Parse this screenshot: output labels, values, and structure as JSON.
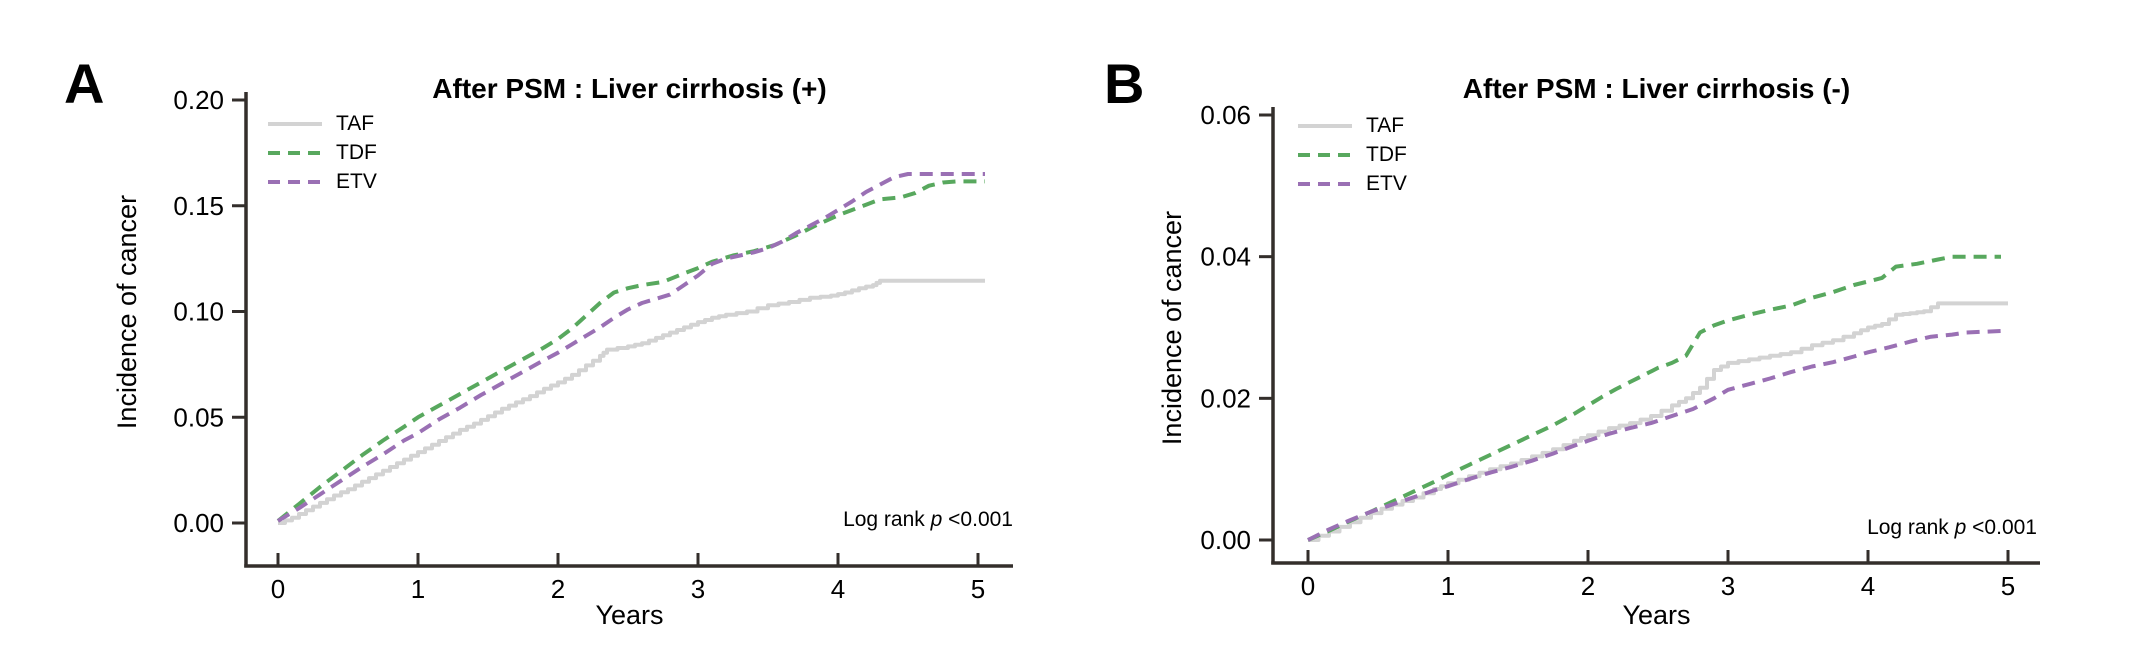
{
  "panels": [
    {
      "letter": "A",
      "title": "After PSM : Liver cirrhosis (+)",
      "y_axis_label": "Incidence of cancer",
      "x_axis_label": "Years",
      "legend": [
        {
          "label": "TAF"
        },
        {
          "label": "TDF"
        },
        {
          "label": "ETV"
        }
      ],
      "log_rank": {
        "prefix": "Log rank",
        "p": "p",
        "value": "<0.001"
      }
    },
    {
      "letter": "B",
      "title": "After PSM : Liver cirrhosis (-)",
      "y_axis_label": "Incidence of cancer",
      "x_axis_label": "Years",
      "legend": [
        {
          "label": "TAF"
        },
        {
          "label": "TDF"
        },
        {
          "label": "ETV"
        }
      ],
      "log_rank": {
        "prefix": "Log rank",
        "p": "p",
        "value": "<0.001"
      }
    }
  ],
  "colors": {
    "taf": "#d3d3d3",
    "tdf": "#58a85e",
    "etv": "#9a70b4",
    "axis": "#332e2b",
    "text": "#000000"
  },
  "chart_data": [
    {
      "type": "line",
      "panel": "A",
      "title": "After PSM : Liver cirrhosis (+)",
      "xlabel": "Years",
      "ylabel": "Incidence of cancer",
      "xlim": [
        0,
        5
      ],
      "ylim": [
        0,
        0.2
      ],
      "x_ticks": [
        0,
        1,
        2,
        3,
        4,
        5
      ],
      "y_tick_labels": [
        "0.00",
        "0.05",
        "0.10",
        "0.15",
        "0.20"
      ],
      "grid": false,
      "legend_position": "top-left",
      "annotation": "Log rank p <0.001",
      "series": [
        {
          "name": "TAF",
          "color": "#d3d3d3",
          "line_style": "solid",
          "step": true,
          "points": [
            [
              0,
              0
            ],
            [
              0.1,
              0.0025
            ],
            [
              0.2,
              0.006
            ],
            [
              0.3,
              0.0095
            ],
            [
              0.4,
              0.013
            ],
            [
              0.5,
              0.016
            ],
            [
              0.6,
              0.0195
            ],
            [
              0.7,
              0.023
            ],
            [
              0.8,
              0.0265
            ],
            [
              0.9,
              0.03
            ],
            [
              1,
              0.0335
            ],
            [
              1.1,
              0.037
            ],
            [
              1.2,
              0.0405
            ],
            [
              1.3,
              0.044
            ],
            [
              1.4,
              0.047
            ],
            [
              1.5,
              0.0505
            ],
            [
              1.6,
              0.054
            ],
            [
              1.7,
              0.057
            ],
            [
              1.8,
              0.06
            ],
            [
              1.9,
              0.0635
            ],
            [
              2,
              0.0665
            ],
            [
              2.1,
              0.07
            ],
            [
              2.2,
              0.0745
            ],
            [
              2.3,
              0.079
            ],
            [
              2.35,
              0.082
            ],
            [
              2.5,
              0.0835
            ],
            [
              2.6,
              0.085
            ],
            [
              2.7,
              0.0875
            ],
            [
              2.8,
              0.09
            ],
            [
              2.9,
              0.0925
            ],
            [
              3,
              0.095
            ],
            [
              3.1,
              0.097
            ],
            [
              3.2,
              0.0985
            ],
            [
              3.35,
              0.1
            ],
            [
              3.5,
              0.103
            ],
            [
              3.65,
              0.1045
            ],
            [
              3.8,
              0.1065
            ],
            [
              3.95,
              0.1075
            ],
            [
              4.05,
              0.109
            ],
            [
              4.15,
              0.111
            ],
            [
              4.25,
              0.1125
            ],
            [
              4.3,
              0.1145
            ],
            [
              5.05,
              0.1145
            ]
          ]
        },
        {
          "name": "TDF",
          "color": "#58a85e",
          "line_style": "dashed",
          "step": false,
          "points": [
            [
              0,
              0.001
            ],
            [
              0.15,
              0.009
            ],
            [
              0.3,
              0.017
            ],
            [
              0.45,
              0.0245
            ],
            [
              0.6,
              0.032
            ],
            [
              0.75,
              0.039
            ],
            [
              0.9,
              0.0455
            ],
            [
              1,
              0.05
            ],
            [
              1.15,
              0.0555
            ],
            [
              1.3,
              0.061
            ],
            [
              1.45,
              0.0665
            ],
            [
              1.6,
              0.072
            ],
            [
              1.75,
              0.0775
            ],
            [
              1.9,
              0.083
            ],
            [
              2,
              0.087
            ],
            [
              2.1,
              0.092
            ],
            [
              2.2,
              0.098
            ],
            [
              2.3,
              0.104
            ],
            [
              2.4,
              0.109
            ],
            [
              2.5,
              0.111
            ],
            [
              2.6,
              0.1125
            ],
            [
              2.75,
              0.114
            ],
            [
              2.9,
              0.118
            ],
            [
              3,
              0.1205
            ],
            [
              3.1,
              0.1235
            ],
            [
              3.25,
              0.1265
            ],
            [
              3.4,
              0.1285
            ],
            [
              3.55,
              0.1315
            ],
            [
              3.7,
              0.136
            ],
            [
              3.85,
              0.141
            ],
            [
              4,
              0.1455
            ],
            [
              4.1,
              0.148
            ],
            [
              4.2,
              0.1505
            ],
            [
              4.3,
              0.153
            ],
            [
              4.45,
              0.154
            ],
            [
              4.55,
              0.156
            ],
            [
              4.65,
              0.1595
            ],
            [
              4.75,
              0.161
            ],
            [
              4.85,
              0.1615
            ],
            [
              5.05,
              0.1615
            ]
          ]
        },
        {
          "name": "ETV",
          "color": "#9a70b4",
          "line_style": "dashed",
          "step": false,
          "points": [
            [
              0,
              0.001
            ],
            [
              0.15,
              0.007
            ],
            [
              0.3,
              0.0135
            ],
            [
              0.45,
              0.02
            ],
            [
              0.6,
              0.0265
            ],
            [
              0.75,
              0.0325
            ],
            [
              0.9,
              0.039
            ],
            [
              1,
              0.0425
            ],
            [
              1.15,
              0.049
            ],
            [
              1.3,
              0.0545
            ],
            [
              1.45,
              0.0605
            ],
            [
              1.6,
              0.066
            ],
            [
              1.75,
              0.0715
            ],
            [
              1.9,
              0.077
            ],
            [
              2,
              0.0805
            ],
            [
              2.1,
              0.0845
            ],
            [
              2.2,
              0.0885
            ],
            [
              2.3,
              0.0925
            ],
            [
              2.4,
              0.097
            ],
            [
              2.5,
              0.101
            ],
            [
              2.6,
              0.104
            ],
            [
              2.7,
              0.106
            ],
            [
              2.8,
              0.108
            ],
            [
              2.9,
              0.1125
            ],
            [
              3,
              0.117
            ],
            [
              3.1,
              0.1225
            ],
            [
              3.2,
              0.125
            ],
            [
              3.3,
              0.1265
            ],
            [
              3.4,
              0.128
            ],
            [
              3.5,
              0.13
            ],
            [
              3.6,
              0.133
            ],
            [
              3.7,
              0.137
            ],
            [
              3.8,
              0.1405
            ],
            [
              3.9,
              0.144
            ],
            [
              4,
              0.148
            ],
            [
              4.1,
              0.152
            ],
            [
              4.2,
              0.1565
            ],
            [
              4.3,
              0.16
            ],
            [
              4.4,
              0.1635
            ],
            [
              4.5,
              0.165
            ],
            [
              5.05,
              0.165
            ]
          ]
        }
      ]
    },
    {
      "type": "line",
      "panel": "B",
      "title": "After PSM : Liver cirrhosis (-)",
      "xlabel": "Years",
      "ylabel": "Incidence of cancer",
      "xlim": [
        0,
        5
      ],
      "ylim": [
        0,
        0.06
      ],
      "x_ticks": [
        0,
        1,
        2,
        3,
        4,
        5
      ],
      "y_tick_labels": [
        "0.00",
        "0.02",
        "0.04",
        "0.06"
      ],
      "grid": false,
      "legend_position": "top-left",
      "annotation": "Log rank p <0.001",
      "series": [
        {
          "name": "TAF",
          "color": "#d3d3d3",
          "line_style": "solid",
          "step": true,
          "points": [
            [
              0,
              0
            ],
            [
              0.15,
              0.0012
            ],
            [
              0.3,
              0.0025
            ],
            [
              0.45,
              0.0038
            ],
            [
              0.6,
              0.005
            ],
            [
              0.75,
              0.006
            ],
            [
              0.9,
              0.0072
            ],
            [
              1,
              0.008
            ],
            [
              1.15,
              0.009
            ],
            [
              1.3,
              0.01
            ],
            [
              1.45,
              0.0108
            ],
            [
              1.6,
              0.0118
            ],
            [
              1.75,
              0.0128
            ],
            [
              1.9,
              0.014
            ],
            [
              2,
              0.0148
            ],
            [
              2.15,
              0.0158
            ],
            [
              2.3,
              0.0165
            ],
            [
              2.45,
              0.0175
            ],
            [
              2.6,
              0.019
            ],
            [
              2.7,
              0.02
            ],
            [
              2.8,
              0.0215
            ],
            [
              2.9,
              0.024
            ],
            [
              3,
              0.025
            ],
            [
              3.15,
              0.0255
            ],
            [
              3.3,
              0.026
            ],
            [
              3.45,
              0.0265
            ],
            [
              3.6,
              0.0275
            ],
            [
              3.75,
              0.0282
            ],
            [
              3.9,
              0.0292
            ],
            [
              4,
              0.03
            ],
            [
              4.1,
              0.0305
            ],
            [
              4.2,
              0.0318
            ],
            [
              4.3,
              0.032
            ],
            [
              4.4,
              0.0323
            ],
            [
              4.5,
              0.0334
            ],
            [
              5,
              0.0334
            ]
          ]
        },
        {
          "name": "TDF",
          "color": "#58a85e",
          "line_style": "dashed",
          "step": false,
          "points": [
            [
              0,
              0
            ],
            [
              0.15,
              0.0013
            ],
            [
              0.3,
              0.0027
            ],
            [
              0.45,
              0.004
            ],
            [
              0.6,
              0.0054
            ],
            [
              0.75,
              0.0068
            ],
            [
              0.9,
              0.0082
            ],
            [
              1,
              0.0092
            ],
            [
              1.15,
              0.0106
            ],
            [
              1.3,
              0.012
            ],
            [
              1.45,
              0.0134
            ],
            [
              1.6,
              0.0148
            ],
            [
              1.75,
              0.0162
            ],
            [
              1.9,
              0.0178
            ],
            [
              2,
              0.019
            ],
            [
              2.1,
              0.0202
            ],
            [
              2.2,
              0.0213
            ],
            [
              2.3,
              0.0223
            ],
            [
              2.4,
              0.0233
            ],
            [
              2.5,
              0.0243
            ],
            [
              2.6,
              0.025
            ],
            [
              2.7,
              0.026
            ],
            [
              2.8,
              0.0293
            ],
            [
              2.9,
              0.0303
            ],
            [
              3,
              0.031
            ],
            [
              3.15,
              0.0318
            ],
            [
              3.3,
              0.0325
            ],
            [
              3.45,
              0.0331
            ],
            [
              3.6,
              0.0342
            ],
            [
              3.75,
              0.035
            ],
            [
              3.9,
              0.036
            ],
            [
              4,
              0.0365
            ],
            [
              4.1,
              0.037
            ],
            [
              4.2,
              0.0386
            ],
            [
              4.35,
              0.039
            ],
            [
              4.5,
              0.0396
            ],
            [
              4.6,
              0.04
            ],
            [
              4.95,
              0.04
            ]
          ]
        },
        {
          "name": "ETV",
          "color": "#9a70b4",
          "line_style": "dashed",
          "step": false,
          "points": [
            [
              0,
              0
            ],
            [
              0.15,
              0.0015
            ],
            [
              0.3,
              0.0028
            ],
            [
              0.45,
              0.004
            ],
            [
              0.6,
              0.005
            ],
            [
              0.75,
              0.006
            ],
            [
              0.9,
              0.007
            ],
            [
              1,
              0.0076
            ],
            [
              1.15,
              0.0086
            ],
            [
              1.3,
              0.0095
            ],
            [
              1.45,
              0.0103
            ],
            [
              1.6,
              0.0112
            ],
            [
              1.75,
              0.0122
            ],
            [
              1.9,
              0.0133
            ],
            [
              2,
              0.014
            ],
            [
              2.15,
              0.015
            ],
            [
              2.3,
              0.0158
            ],
            [
              2.45,
              0.0165
            ],
            [
              2.6,
              0.0175
            ],
            [
              2.75,
              0.0185
            ],
            [
              2.9,
              0.02
            ],
            [
              3,
              0.0212
            ],
            [
              3.15,
              0.022
            ],
            [
              3.3,
              0.0228
            ],
            [
              3.45,
              0.0237
            ],
            [
              3.6,
              0.0245
            ],
            [
              3.75,
              0.0251
            ],
            [
              3.9,
              0.0259
            ],
            [
              4,
              0.0265
            ],
            [
              4.15,
              0.0272
            ],
            [
              4.3,
              0.028
            ],
            [
              4.45,
              0.0287
            ],
            [
              4.6,
              0.029
            ],
            [
              4.7,
              0.0293
            ],
            [
              4.95,
              0.0295
            ]
          ]
        }
      ]
    }
  ]
}
